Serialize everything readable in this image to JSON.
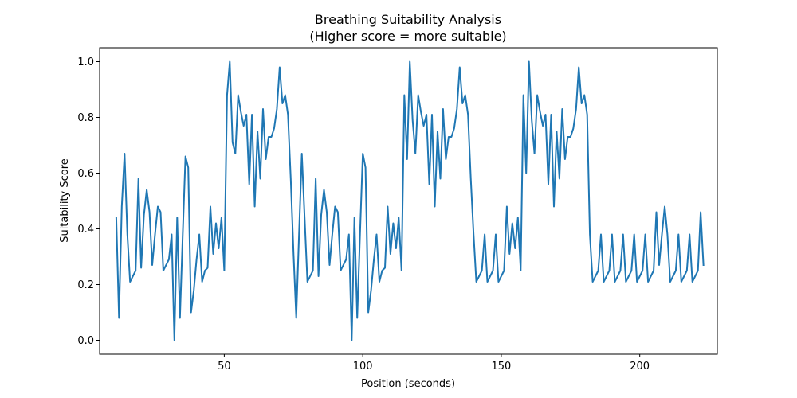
{
  "chart_data": {
    "type": "line",
    "title": "Breathing Suitability Analysis",
    "subtitle": "(Higher score = more suitable)",
    "xlabel": "Position (seconds)",
    "ylabel": "Suitability Score",
    "xlim": [
      5,
      228
    ],
    "ylim": [
      -0.05,
      1.05
    ],
    "xticks": [
      50,
      100,
      150,
      200
    ],
    "yticks": [
      0.0,
      0.2,
      0.4,
      0.6,
      0.8,
      1.0
    ],
    "xtick_labels": [
      "50",
      "100",
      "150",
      "200"
    ],
    "ytick_labels": [
      "0.0",
      "0.2",
      "0.4",
      "0.6",
      "0.8",
      "1.0"
    ],
    "grid": false,
    "line_color": "#1f77b4",
    "series": [
      {
        "x": [
          11,
          12,
          13,
          14,
          15,
          16,
          17,
          18,
          19,
          20,
          21,
          22,
          23,
          24,
          25,
          26,
          27,
          28,
          29,
          30,
          31,
          32,
          33,
          34,
          35,
          36,
          37,
          38,
          39,
          40,
          41,
          42,
          43,
          44,
          45,
          46,
          47,
          48,
          49,
          50,
          51,
          52,
          53,
          54,
          55,
          56,
          57,
          58,
          59,
          60,
          61,
          62,
          63,
          64,
          65,
          66,
          67,
          68,
          69,
          70,
          71,
          72,
          73,
          74,
          75,
          76,
          77,
          78,
          79,
          80,
          81,
          82,
          83,
          84,
          85,
          86,
          87,
          88,
          89,
          90,
          91,
          92,
          93,
          94,
          95,
          96,
          97,
          98,
          99,
          100,
          101,
          102,
          103,
          104,
          105,
          106,
          107,
          108,
          109,
          110,
          111,
          112,
          113,
          114,
          115,
          116,
          117,
          118,
          119,
          120,
          121,
          122,
          123,
          124,
          125,
          126,
          127,
          128,
          129,
          130,
          131,
          132,
          133,
          134,
          135,
          136,
          137,
          138,
          139,
          140,
          141,
          142,
          143,
          144,
          145,
          146,
          147,
          148,
          149,
          150,
          151,
          152,
          153,
          154,
          155,
          156,
          157,
          158,
          159,
          160,
          161,
          162,
          163,
          164,
          165,
          166,
          167,
          168,
          169,
          170,
          171,
          172,
          173,
          174,
          175,
          176,
          177,
          178,
          179,
          180,
          181,
          182,
          183,
          184,
          185,
          186,
          187,
          188,
          189,
          190,
          191,
          192,
          193,
          194,
          195,
          196,
          197,
          198,
          199,
          200,
          201,
          202,
          203,
          204,
          205,
          206,
          207,
          208,
          209,
          210,
          211,
          212,
          213,
          214,
          215,
          216,
          217,
          218,
          219,
          220,
          221,
          222,
          223
        ],
        "values": [
          0.44,
          0.08,
          0.48,
          0.67,
          0.38,
          0.21,
          0.23,
          0.25,
          0.58,
          0.26,
          0.45,
          0.54,
          0.46,
          0.27,
          0.38,
          0.48,
          0.46,
          0.25,
          0.27,
          0.29,
          0.38,
          0.0,
          0.44,
          0.08,
          0.38,
          0.66,
          0.62,
          0.1,
          0.18,
          0.29,
          0.38,
          0.21,
          0.25,
          0.26,
          0.48,
          0.31,
          0.42,
          0.33,
          0.44,
          0.25,
          0.88,
          1.0,
          0.71,
          0.67,
          0.88,
          0.82,
          0.77,
          0.81,
          0.56,
          0.81,
          0.48,
          0.75,
          0.58,
          0.83,
          0.65,
          0.73,
          0.73,
          0.76,
          0.83,
          0.98,
          0.85,
          0.88,
          0.81,
          0.58,
          0.31,
          0.08,
          0.38,
          0.67,
          0.44,
          0.21,
          0.23,
          0.25,
          0.58,
          0.23,
          0.45,
          0.54,
          0.46,
          0.27,
          0.38,
          0.48,
          0.46,
          0.25,
          0.27,
          0.29,
          0.38,
          0.0,
          0.44,
          0.08,
          0.38,
          0.67,
          0.62,
          0.1,
          0.18,
          0.29,
          0.38,
          0.21,
          0.25,
          0.26,
          0.48,
          0.31,
          0.42,
          0.33,
          0.44,
          0.25,
          0.88,
          0.65,
          1.0,
          0.79,
          0.67,
          0.88,
          0.82,
          0.77,
          0.81,
          0.56,
          0.81,
          0.48,
          0.75,
          0.58,
          0.83,
          0.65,
          0.73,
          0.73,
          0.76,
          0.83,
          0.98,
          0.85,
          0.88,
          0.81,
          0.58,
          0.38,
          0.21,
          0.23,
          0.25,
          0.38,
          0.21,
          0.23,
          0.25,
          0.38,
          0.21,
          0.23,
          0.25,
          0.48,
          0.31,
          0.42,
          0.33,
          0.44,
          0.25,
          0.88,
          0.6,
          1.0,
          0.79,
          0.67,
          0.88,
          0.82,
          0.77,
          0.81,
          0.56,
          0.81,
          0.48,
          0.75,
          0.58,
          0.83,
          0.65,
          0.73,
          0.73,
          0.76,
          0.83,
          0.98,
          0.85,
          0.88,
          0.81,
          0.38,
          0.21,
          0.23,
          0.25,
          0.38,
          0.21,
          0.23,
          0.25,
          0.38,
          0.21,
          0.23,
          0.25,
          0.38,
          0.21,
          0.23,
          0.25,
          0.38,
          0.21,
          0.23,
          0.25,
          0.38,
          0.21,
          0.23,
          0.25,
          0.46,
          0.27,
          0.38,
          0.48,
          0.38,
          0.21,
          0.23,
          0.25,
          0.38,
          0.21,
          0.23,
          0.25,
          0.38,
          0.21,
          0.23,
          0.25,
          0.46,
          0.27
        ]
      }
    ]
  }
}
